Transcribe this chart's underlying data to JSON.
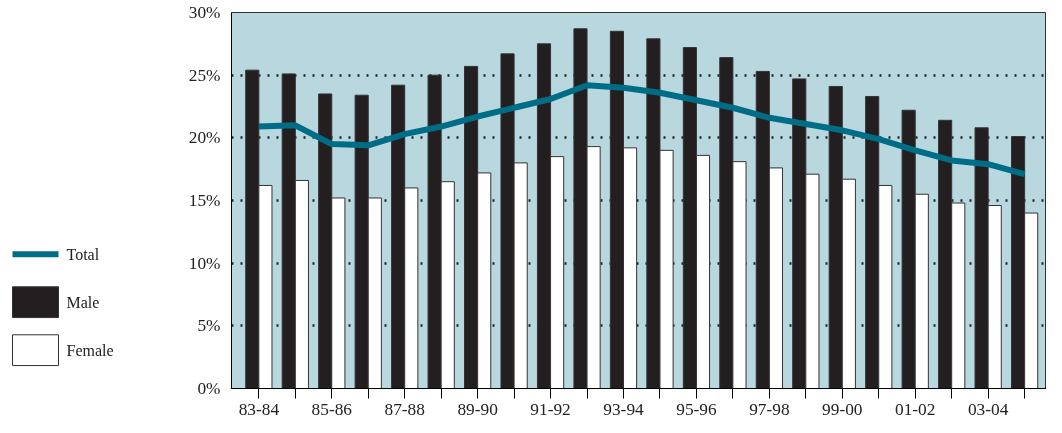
{
  "chart_data": {
    "type": "bar",
    "categories": [
      "83-84",
      null,
      "85-86",
      null,
      "87-88",
      null,
      "89-90",
      null,
      "91-92",
      null,
      "93-94",
      null,
      "95-96",
      null,
      "97-98",
      null,
      "99-00",
      null,
      "01-02",
      null,
      "03-04",
      null
    ],
    "series": [
      {
        "name": "Total",
        "type": "line",
        "color": "#006d87",
        "values": [
          20.9,
          21.0,
          19.5,
          19.4,
          20.3,
          20.9,
          21.7,
          22.4,
          23.1,
          24.2,
          24.0,
          23.6,
          23.0,
          22.4,
          21.6,
          21.1,
          20.6,
          19.9,
          19.0,
          18.2,
          17.9,
          17.1
        ]
      },
      {
        "name": "Male",
        "color": "#231f20",
        "values": [
          25.4,
          25.1,
          23.5,
          23.4,
          24.2,
          25.0,
          25.7,
          26.7,
          27.5,
          28.7,
          28.5,
          27.9,
          27.2,
          26.4,
          25.3,
          24.7,
          24.1,
          23.3,
          22.2,
          21.4,
          20.8,
          20.1
        ]
      },
      {
        "name": "Female",
        "color": "#ffffff",
        "values": [
          16.2,
          16.6,
          15.2,
          15.2,
          16.0,
          16.5,
          17.2,
          18.0,
          18.5,
          19.3,
          19.2,
          19.0,
          18.6,
          18.1,
          17.6,
          17.1,
          16.7,
          16.2,
          15.5,
          14.8,
          14.6,
          14.0
        ]
      }
    ],
    "ylim": [
      0,
      30
    ],
    "yticks": [
      {
        "value": 0,
        "label": "0%"
      },
      {
        "value": 5,
        "label": "5%"
      },
      {
        "value": 10,
        "label": "10%"
      },
      {
        "value": 15,
        "label": "15%"
      },
      {
        "value": 20,
        "label": "20%"
      },
      {
        "value": 25,
        "label": "25%"
      },
      {
        "value": 30,
        "label": "30%"
      }
    ],
    "grid": "y",
    "legend": "left"
  }
}
